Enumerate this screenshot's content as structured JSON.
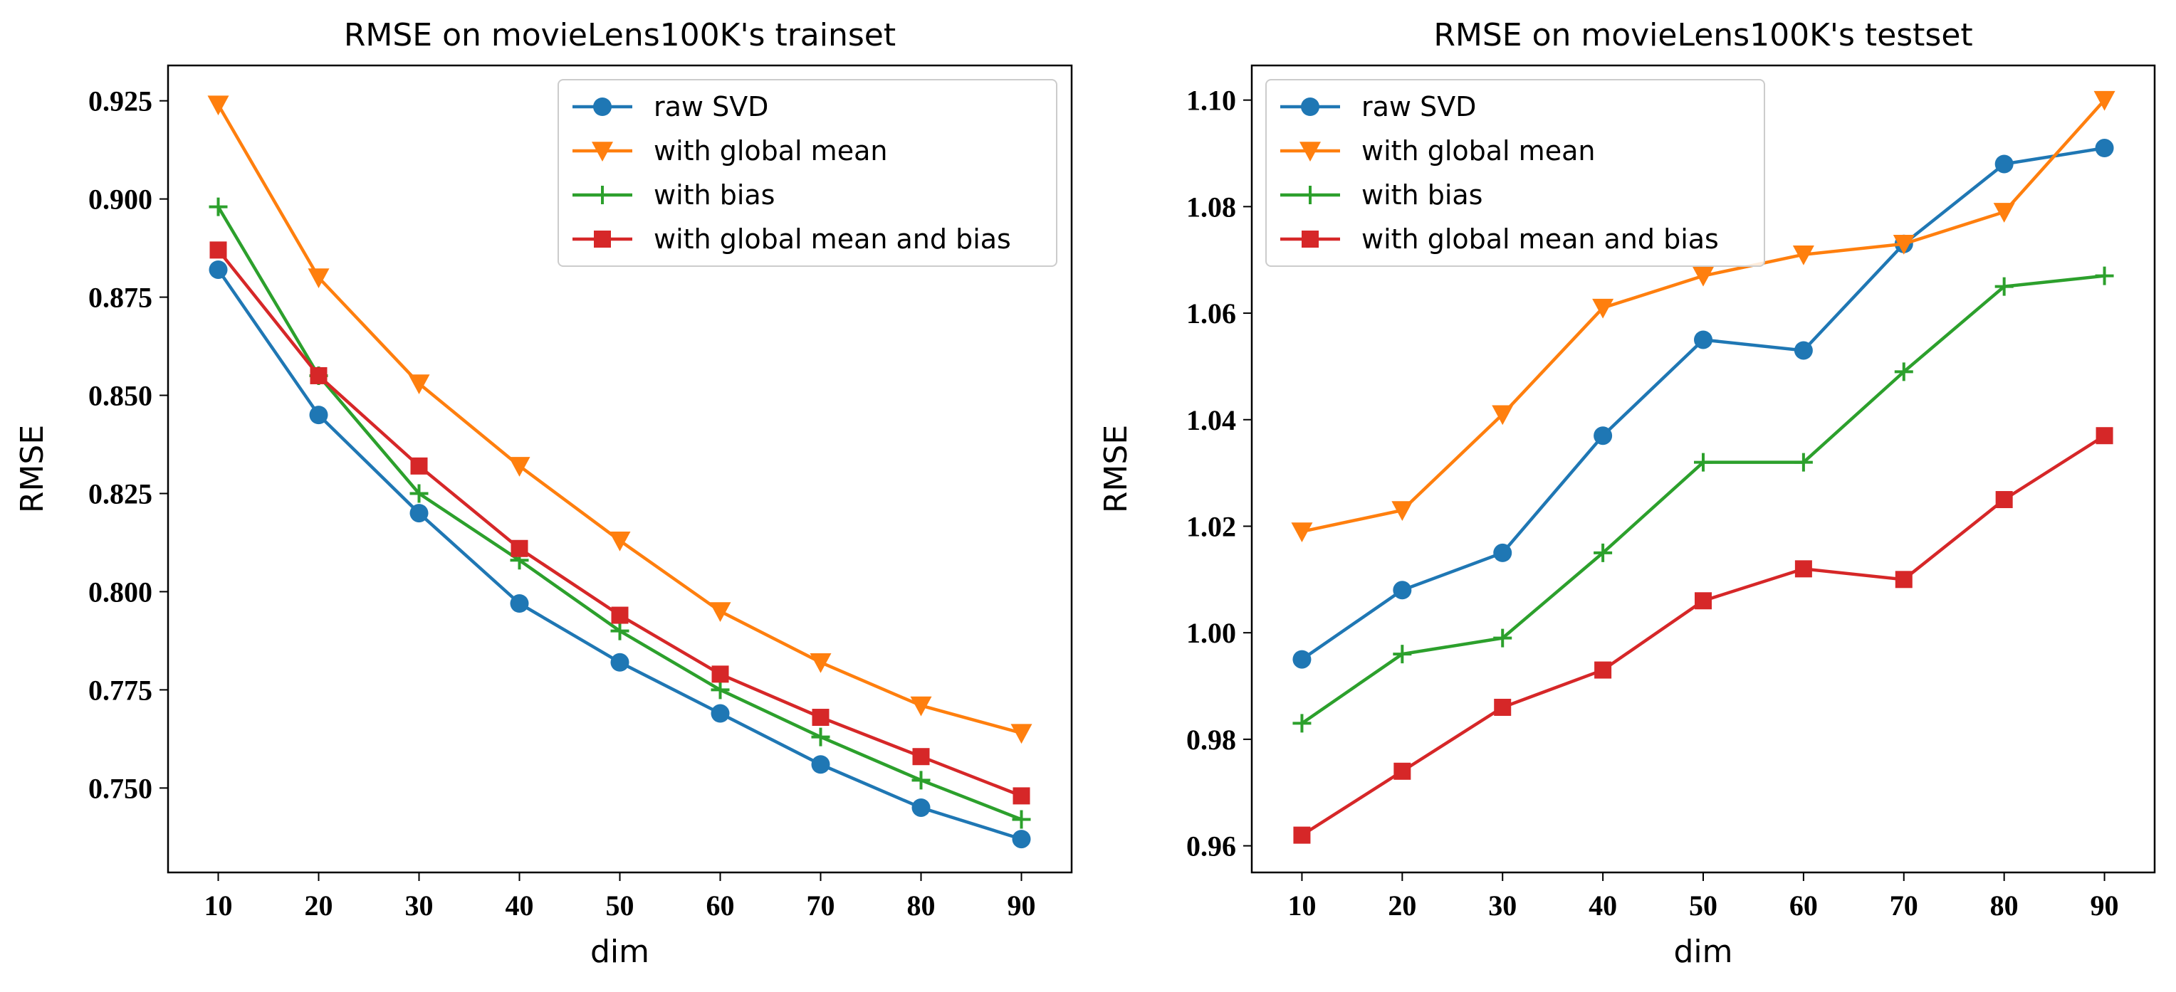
{
  "chart_data": [
    {
      "type": "line",
      "title": "RMSE on movieLens100K's trainset",
      "xlabel": "dim",
      "ylabel": "RMSE",
      "x": [
        10,
        20,
        30,
        40,
        50,
        60,
        70,
        80,
        90
      ],
      "xlim": [
        5,
        95
      ],
      "ylim": [
        0.7285,
        0.934
      ],
      "xticks": [
        10,
        20,
        30,
        40,
        50,
        60,
        70,
        80,
        90
      ],
      "yticks": [
        0.75,
        0.775,
        0.8,
        0.825,
        0.85,
        0.875,
        0.9,
        0.925
      ],
      "ytick_labels": [
        "0.750",
        "0.775",
        "0.800",
        "0.825",
        "0.850",
        "0.875",
        "0.900",
        "0.925"
      ],
      "grid": false,
      "legend_position": "top-right",
      "series": [
        {
          "name": "raw SVD",
          "color": "#1f77b4",
          "marker": "circle",
          "values": [
            0.882,
            0.845,
            0.82,
            0.797,
            0.782,
            0.769,
            0.756,
            0.745,
            0.737
          ]
        },
        {
          "name": "with global mean",
          "color": "#ff7f0e",
          "marker": "triangle-down",
          "values": [
            0.924,
            0.88,
            0.853,
            0.832,
            0.813,
            0.795,
            0.782,
            0.771,
            0.764
          ]
        },
        {
          "name": "with bias",
          "color": "#2ca02c",
          "marker": "plus",
          "values": [
            0.898,
            0.855,
            0.825,
            0.808,
            0.79,
            0.775,
            0.763,
            0.752,
            0.742
          ]
        },
        {
          "name": "with global mean and bias",
          "color": "#d62728",
          "marker": "square",
          "values": [
            0.887,
            0.855,
            0.832,
            0.811,
            0.794,
            0.779,
            0.768,
            0.758,
            0.748
          ]
        }
      ]
    },
    {
      "type": "line",
      "title": "RMSE on movieLens100K's testset",
      "xlabel": "dim",
      "ylabel": "RMSE",
      "x": [
        10,
        20,
        30,
        40,
        50,
        60,
        70,
        80,
        90
      ],
      "xlim": [
        5,
        95
      ],
      "ylim": [
        0.955,
        1.1065
      ],
      "xticks": [
        10,
        20,
        30,
        40,
        50,
        60,
        70,
        80,
        90
      ],
      "yticks": [
        0.96,
        0.98,
        1.0,
        1.02,
        1.04,
        1.06,
        1.08,
        1.1
      ],
      "ytick_labels": [
        "0.96",
        "0.98",
        "1.00",
        "1.02",
        "1.04",
        "1.06",
        "1.08",
        "1.10"
      ],
      "grid": false,
      "legend_position": "top-left",
      "series": [
        {
          "name": "raw SVD",
          "color": "#1f77b4",
          "marker": "circle",
          "values": [
            0.995,
            1.008,
            1.015,
            1.037,
            1.055,
            1.053,
            1.073,
            1.088,
            1.091
          ]
        },
        {
          "name": "with global mean",
          "color": "#ff7f0e",
          "marker": "triangle-down",
          "values": [
            1.019,
            1.023,
            1.041,
            1.061,
            1.067,
            1.071,
            1.073,
            1.079,
            1.1
          ]
        },
        {
          "name": "with bias",
          "color": "#2ca02c",
          "marker": "plus",
          "values": [
            0.983,
            0.996,
            0.999,
            1.015,
            1.032,
            1.032,
            1.049,
            1.065,
            1.067
          ]
        },
        {
          "name": "with global mean and bias",
          "color": "#d62728",
          "marker": "square",
          "values": [
            0.962,
            0.974,
            0.986,
            0.993,
            1.006,
            1.012,
            1.01,
            1.025,
            1.037
          ]
        }
      ]
    }
  ]
}
